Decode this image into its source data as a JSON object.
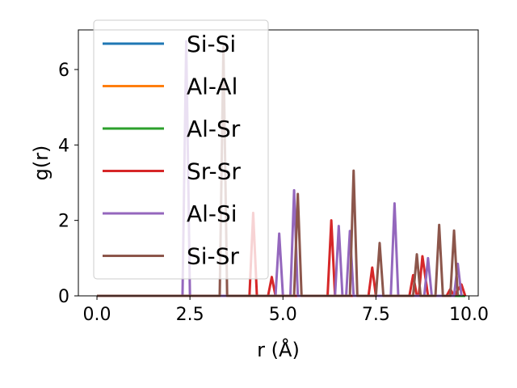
{
  "chart_data": {
    "type": "line",
    "title": "",
    "xlabel": "r (Å)",
    "ylabel": "g(r)",
    "xlim": [
      -0.5,
      10.25
    ],
    "ylim": [
      0,
      7.05
    ],
    "xticks": [
      0.0,
      2.5,
      5.0,
      7.5,
      10.0
    ],
    "xtick_labels": [
      "0.0",
      "2.5",
      "5.0",
      "7.5",
      "10.0"
    ],
    "yticks": [
      0,
      2,
      4,
      6
    ],
    "ytick_labels": [
      "0",
      "2",
      "4",
      "6"
    ],
    "grid": false,
    "legend_position": "top-left",
    "series": [
      {
        "name": "Si-Si",
        "color": "#1f77b4",
        "x": [
          0.0,
          9.9
        ],
        "y": [
          0,
          0
        ]
      },
      {
        "name": "Al-Al",
        "color": "#ff7f0e",
        "x": [
          0.0,
          9.9
        ],
        "y": [
          0,
          0
        ]
      },
      {
        "name": "Al-Sr",
        "color": "#2ca02c",
        "x": [
          0.0,
          9.9
        ],
        "y": [
          0,
          0
        ]
      },
      {
        "name": "Sr-Sr",
        "color": "#d62728",
        "x": [
          0.0,
          4.1,
          4.2,
          4.3,
          4.6,
          4.7,
          4.8,
          6.2,
          6.3,
          6.4,
          7.3,
          7.4,
          7.5,
          8.4,
          8.5,
          8.6,
          8.65,
          8.75,
          8.9,
          9.4,
          9.5,
          9.6,
          9.8,
          9.9
        ],
        "y": [
          0,
          0,
          2.2,
          0,
          0,
          0.5,
          0,
          0,
          2.0,
          0,
          0,
          0.75,
          0,
          0,
          0.55,
          0,
          0,
          1.05,
          0,
          0,
          0.18,
          0,
          0.3,
          0
        ]
      },
      {
        "name": "Al-Si",
        "color": "#9467bd",
        "x": [
          0.0,
          2.3,
          2.4,
          2.5,
          4.8,
          4.9,
          5.0,
          5.2,
          5.3,
          5.4,
          6.4,
          6.5,
          6.6,
          6.7,
          6.8,
          6.9,
          7.9,
          8.0,
          8.1,
          8.8,
          8.9,
          9.0,
          9.6,
          9.7,
          9.8
        ],
        "y": [
          0,
          0,
          6.75,
          0,
          0,
          1.65,
          0,
          0,
          2.8,
          0,
          0,
          1.85,
          0,
          0,
          1.72,
          0,
          0,
          2.45,
          0,
          0,
          1.0,
          0,
          0,
          0.85,
          0
        ]
      },
      {
        "name": "Si-Sr",
        "color": "#8c564b",
        "x": [
          0.0,
          3.3,
          3.4,
          3.5,
          5.3,
          5.4,
          5.5,
          6.8,
          6.9,
          7.0,
          7.5,
          7.6,
          7.7,
          8.5,
          8.6,
          8.7,
          9.1,
          9.2,
          9.3,
          9.5,
          9.6,
          9.7
        ],
        "y": [
          0,
          0,
          6.6,
          0,
          0,
          2.7,
          0,
          0,
          3.32,
          0,
          0,
          1.4,
          0,
          0,
          1.1,
          0,
          0,
          1.88,
          0,
          0,
          1.73,
          0
        ]
      }
    ]
  }
}
